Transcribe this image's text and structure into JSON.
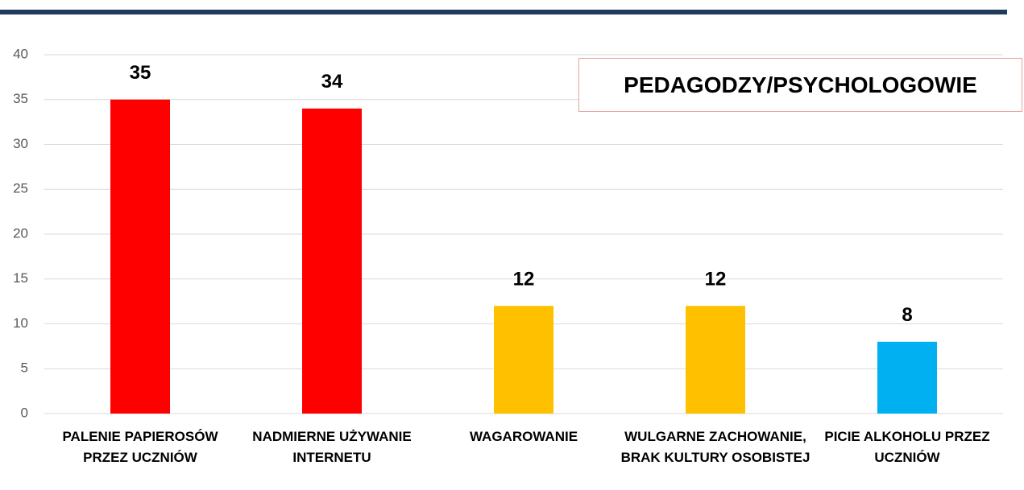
{
  "chart_data": {
    "type": "bar",
    "title": "PEDAGODZY/PSYCHOLOGOWIE",
    "categories": [
      "PALENIE PAPIEROSÓW PRZEZ UCZNIÓW",
      "NADMIERNE UŻYWANIE INTERNETU",
      "WAGAROWANIE",
      "WULGARNE ZACHOWANIE, BRAK KULTURY OSOBISTEJ",
      "PICIE ALKOHOLU PRZEZ UCZNIÓW"
    ],
    "values": [
      35,
      34,
      12,
      12,
      8
    ],
    "colors": [
      "#ff0000",
      "#ff0000",
      "#ffc000",
      "#ffc000",
      "#00b0f0"
    ],
    "ylim": [
      0,
      40
    ],
    "yticks": [
      0,
      5,
      10,
      15,
      20,
      25,
      30,
      35,
      40
    ],
    "grid": true
  }
}
